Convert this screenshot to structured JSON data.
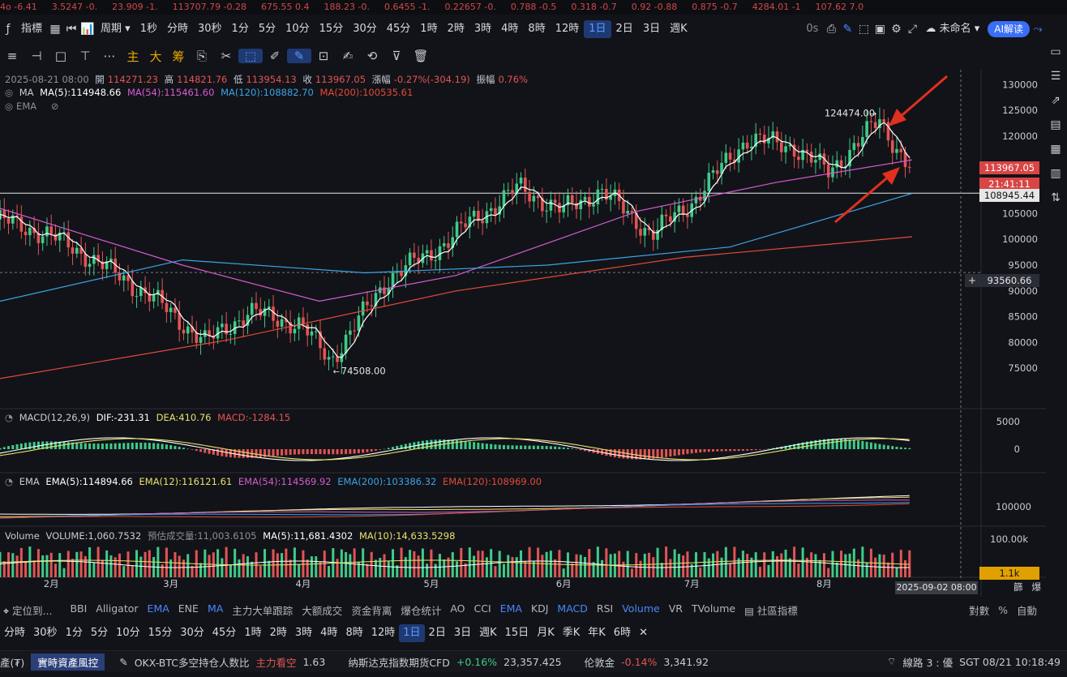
{
  "ticker": [
    "4o -6.41",
    "3.5247 -0.",
    "23.909 -1.",
    "113707.79 -0.28",
    "675.55 0.4",
    "188.23 -0.",
    "0.6455 -1.",
    "0.22657 -0.",
    "0.788 -0.5",
    "0.318 -0.7",
    "0.92 -0.88",
    "0.875 -0.7",
    "4284.01 -1",
    "107.62 7.0"
  ],
  "toolbar": {
    "indicators_label": "指標",
    "period_label": "周期",
    "timeframes": [
      "1秒",
      "分時",
      "30秒",
      "1分",
      "5分",
      "10分",
      "15分",
      "30分",
      "45分",
      "1時",
      "2時",
      "3時",
      "4時",
      "8時",
      "12時",
      "1日",
      "2日",
      "3日",
      "週K"
    ],
    "active_timeframe": "1日",
    "countdown": "0s",
    "layout_name": "未命名",
    "ai_label": "AI解读"
  },
  "drawbar": {
    "labels": [
      "主",
      "大",
      "筹"
    ]
  },
  "ohlc": {
    "date": "2025-08-21 08:00",
    "open_label": "開",
    "open": "114271.23",
    "high_label": "高",
    "high": "114821.76",
    "low_label": "低",
    "low": "113954.13",
    "close_label": "收",
    "close": "113967.05",
    "change_label": "漲幅",
    "change": "-0.27%(-304.19)",
    "amp_label": "振幅",
    "amp": "0.76%"
  },
  "ma_legend": {
    "name": "MA",
    "ma5": "MA(5):114948.66",
    "ma54": "MA(54):115461.60",
    "ma120": "MA(120):108882.70",
    "ma200": "MA(200):100535.61"
  },
  "ema_toggle": "EMA",
  "macd_legend": {
    "name": "MACD(12,26,9)",
    "dif": "DIF:-231.31",
    "dea": "DEA:410.76",
    "macd": "MACD:-1284.15"
  },
  "ema_legend": {
    "name": "EMA",
    "ema5": "EMA(5):114894.66",
    "ema12": "EMA(12):116121.61",
    "ema54": "EMA(54):114569.92",
    "ema200": "EMA(200):103386.32",
    "ema120": "EMA(120):108969.00"
  },
  "vol_legend": {
    "name": "Volume",
    "volume": "VOLUME:1,060.7532",
    "est": "預估成交量:11,003.6105",
    "ma5": "MA(5):11,681.4302",
    "ma10": "MA(10):14,633.5298"
  },
  "price_labels": {
    "last": "113967.05",
    "countdown": "21:41:11",
    "line": "108945.44",
    "crosshair": "93560.66"
  },
  "annotations": {
    "high": "124474.00",
    "low": "74508.00"
  },
  "crosshair_date": "2025-09-02 08:00",
  "axis_bottom_right": [
    "篩",
    "爆"
  ],
  "indicator_bar": {
    "locate": "定位到...",
    "items": [
      "BBI",
      "Alligator",
      "EMA",
      "ENE",
      "MA",
      "主力大单跟踪",
      "大额成交",
      "资金背离",
      "爆仓统计",
      "AO",
      "CCI",
      "EMA",
      "KDJ",
      "MACD",
      "RSI",
      "Volume",
      "VR",
      "TVolume"
    ],
    "active": [
      "EMA",
      "MA",
      "MACD",
      "Volume"
    ],
    "community": "社區指標",
    "log": "對數",
    "percent": "%",
    "auto": "自動"
  },
  "tf_bar": {
    "items": [
      "分時",
      "30秒",
      "1分",
      "5分",
      "10分",
      "15分",
      "30分",
      "45分",
      "1時",
      "2時",
      "3時",
      "4時",
      "8時",
      "12時",
      "1日",
      "2日",
      "3日",
      "週K",
      "15日",
      "月K",
      "季K",
      "年K",
      "6時"
    ],
    "active": "1日"
  },
  "status_bar": {
    "assets": "產(₮)",
    "risk": "實時資產風控",
    "okx": "OKX-BTC多空持仓人数比",
    "okx_signal": "主力看空",
    "okx_val": "1.63",
    "nasdaq": "纳斯达克指数期货CFD",
    "nasdaq_chg": "+0.16%",
    "nasdaq_val": "23,357.425",
    "gold": "伦敦金",
    "gold_chg": "-0.14%",
    "gold_val": "3,341.92",
    "line": "線路 3 : 優",
    "time": "SGT 08/21 10:18:49"
  },
  "colors": {
    "up": "#3ecb8a",
    "down": "#e25454",
    "ma5": "#ffffff",
    "ma54": "#d65bd0",
    "ma120": "#3aa3e8",
    "ma200": "#e24a3a",
    "dif": "#ffffff",
    "dea": "#e8e16a",
    "arrow": "#e0301e",
    "accent": "#3a6ef5"
  },
  "chart_data": [
    {
      "type": "candlestick",
      "title": "",
      "x_labels": [
        "2月",
        "3月",
        "4月",
        "5月",
        "6月",
        "7月",
        "8月"
      ],
      "y_ticks": [
        130000,
        125000,
        120000,
        110000,
        105000,
        100000,
        95000,
        90000,
        85000,
        80000,
        75000
      ],
      "ylim": [
        70000,
        131000
      ],
      "close_path": [
        {
          "x": "2025-01-20",
          "y": 104000
        },
        {
          "x": "2025-02-01",
          "y": 101000
        },
        {
          "x": "2025-02-10",
          "y": 97000
        },
        {
          "x": "2025-02-25",
          "y": 89000
        },
        {
          "x": "2025-03-10",
          "y": 80000
        },
        {
          "x": "2025-03-20",
          "y": 86000
        },
        {
          "x": "2025-04-01",
          "y": 83500
        },
        {
          "x": "2025-04-08",
          "y": 76500
        },
        {
          "x": "2025-04-22",
          "y": 93000
        },
        {
          "x": "2025-05-01",
          "y": 97000
        },
        {
          "x": "2025-05-10",
          "y": 103000
        },
        {
          "x": "2025-05-22",
          "y": 110000
        },
        {
          "x": "2025-06-01",
          "y": 105500
        },
        {
          "x": "2025-06-10",
          "y": 109500
        },
        {
          "x": "2025-06-22",
          "y": 101000
        },
        {
          "x": "2025-07-01",
          "y": 107000
        },
        {
          "x": "2025-07-14",
          "y": 119500
        },
        {
          "x": "2025-07-25",
          "y": 118000
        },
        {
          "x": "2025-08-02",
          "y": 113000
        },
        {
          "x": "2025-08-14",
          "y": 123000
        },
        {
          "x": "2025-08-21",
          "y": 113967
        }
      ],
      "ma": [
        {
          "name": "MA(54)",
          "points": [
            [
              0,
              106000
            ],
            [
              0.2,
              95000
            ],
            [
              0.35,
              88000
            ],
            [
              0.5,
              93000
            ],
            [
              0.7,
              105500
            ],
            [
              0.85,
              111000
            ],
            [
              1,
              115400
            ]
          ]
        },
        {
          "name": "MA(120)",
          "points": [
            [
              0,
              88000
            ],
            [
              0.2,
              96000
            ],
            [
              0.4,
              93500
            ],
            [
              0.6,
              95000
            ],
            [
              0.8,
              98500
            ],
            [
              1,
              108900
            ]
          ]
        },
        {
          "name": "MA(200)",
          "points": [
            [
              0,
              73000
            ],
            [
              0.25,
              80500
            ],
            [
              0.5,
              90000
            ],
            [
              0.75,
              96500
            ],
            [
              1,
              100500
            ]
          ]
        }
      ],
      "high": 124474,
      "low": 74508,
      "last": 113967.05,
      "hline": 108945.44,
      "crosshair_y": 93560.66
    },
    {
      "type": "bar",
      "name": "MACD(12,26,9)",
      "y_ticks": [
        5000,
        0
      ],
      "note": "histogram green above / red below zero"
    },
    {
      "type": "line",
      "name": "EMA",
      "y_ticks": [
        100000
      ]
    },
    {
      "type": "bar",
      "name": "Volume",
      "y_ticks": [
        "100.00k"
      ],
      "last_label": "1.1k"
    }
  ]
}
